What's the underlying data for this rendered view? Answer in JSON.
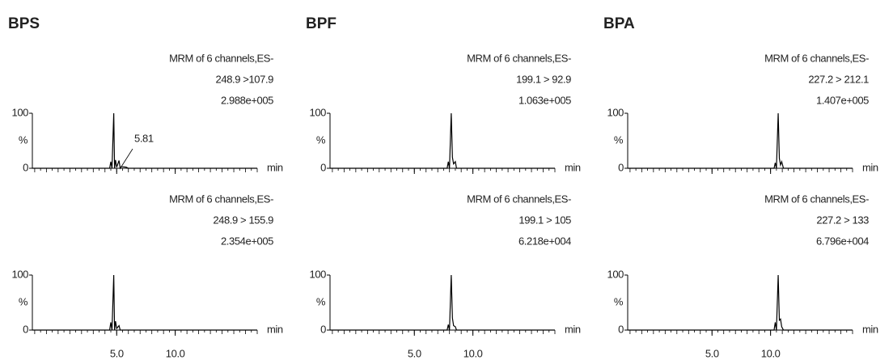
{
  "chart_data": [
    {
      "type": "line",
      "title": "BPS",
      "annotation": [
        "MRM of 6 channels,ES-",
        "248.9 >107.9",
        "2.988e+005"
      ],
      "peak_label": "5.81",
      "y_label": "%",
      "x_label": "min",
      "xlim": [
        -2.2,
        17
      ],
      "ylim": [
        0,
        100
      ],
      "yticks": [
        0,
        100
      ],
      "xticks": [
        5,
        10
      ],
      "show_xtick_labels": false,
      "color": "#000000",
      "x": [
        -2.2,
        4.4,
        4.5,
        4.6,
        4.75,
        4.82,
        4.9,
        5.0,
        5.2,
        5.3,
        5.4,
        5.81,
        6.0,
        17
      ],
      "values": [
        0,
        0,
        12,
        0,
        100,
        0,
        15,
        2,
        14,
        0,
        3,
        2,
        0,
        0
      ]
    },
    {
      "type": "line",
      "title": "BPF",
      "annotation": [
        "MRM of 6 channels,ES-",
        "199.1 > 92.9",
        "1.063e+005"
      ],
      "y_label": "%",
      "x_label": "min",
      "xlim": [
        -2.2,
        17
      ],
      "ylim": [
        0,
        100
      ],
      "yticks": [
        0,
        100
      ],
      "xticks": [
        5,
        10
      ],
      "show_xtick_labels": false,
      "color": "#000000",
      "x": [
        -2.2,
        7.8,
        7.9,
        8.0,
        8.15,
        8.25,
        8.35,
        8.5,
        8.6,
        17
      ],
      "values": [
        0,
        0,
        12,
        0,
        100,
        20,
        8,
        12,
        0,
        0
      ]
    },
    {
      "type": "line",
      "title": "BPA",
      "annotation": [
        "MRM of 6 channels,ES-",
        "227.2 > 212.1",
        "1.407e+005"
      ],
      "y_label": "%",
      "x_label": "min",
      "xlim": [
        -2.2,
        17
      ],
      "ylim": [
        0,
        100
      ],
      "yticks": [
        0,
        100
      ],
      "xticks": [
        5,
        10
      ],
      "show_xtick_labels": false,
      "color": "#000000",
      "x": [
        -2.2,
        10.3,
        10.4,
        10.5,
        10.65,
        10.75,
        10.85,
        10.95,
        11.1,
        17
      ],
      "values": [
        0,
        0,
        10,
        0,
        100,
        18,
        6,
        12,
        0,
        0
      ]
    },
    {
      "type": "line",
      "annotation": [
        "MRM of 6 channels,ES-",
        "248.9 > 155.9",
        "2.354e+005"
      ],
      "y_label": "%",
      "x_label": "min",
      "xlim": [
        -2.2,
        17
      ],
      "ylim": [
        0,
        100
      ],
      "yticks": [
        0,
        100
      ],
      "xticks": [
        {
          "value": 5,
          "label": "5.0"
        },
        {
          "value": 10,
          "label": "10.0"
        }
      ],
      "show_xtick_labels": true,
      "color": "#000000",
      "x": [
        -2.2,
        4.4,
        4.5,
        4.6,
        4.75,
        4.82,
        4.9,
        5.0,
        5.2,
        5.3,
        17
      ],
      "values": [
        0,
        0,
        14,
        0,
        100,
        0,
        16,
        3,
        8,
        0,
        0
      ]
    },
    {
      "type": "line",
      "annotation": [
        "MRM of 6 channels,ES-",
        "199.1 > 105",
        "6.218e+004"
      ],
      "y_label": "%",
      "x_label": "min",
      "xlim": [
        -2.2,
        17
      ],
      "ylim": [
        0,
        100
      ],
      "yticks": [
        0,
        100
      ],
      "xticks": [
        {
          "value": 5,
          "label": "5.0"
        },
        {
          "value": 10,
          "label": "10.0"
        }
      ],
      "show_xtick_labels": true,
      "color": "#000000",
      "x": [
        -2.2,
        7.8,
        7.9,
        8.0,
        8.15,
        8.25,
        8.35,
        8.5,
        8.6,
        17
      ],
      "values": [
        0,
        0,
        10,
        0,
        100,
        22,
        8,
        6,
        0,
        0
      ]
    },
    {
      "type": "line",
      "annotation": [
        "MRM of 6 channels,ES-",
        "227.2 > 133",
        "6.796e+004"
      ],
      "y_label": "%",
      "x_label": "min",
      "xlim": [
        -2.2,
        17
      ],
      "ylim": [
        0,
        100
      ],
      "yticks": [
        0,
        100
      ],
      "xticks": [
        {
          "value": 5,
          "label": "5.0"
        },
        {
          "value": 10,
          "label": "10.0"
        }
      ],
      "show_xtick_labels": true,
      "color": "#000000",
      "x": [
        -2.2,
        10.3,
        10.4,
        10.5,
        10.65,
        10.75,
        10.85,
        10.95,
        11.1,
        17
      ],
      "values": [
        0,
        0,
        14,
        0,
        100,
        18,
        20,
        6,
        0,
        0
      ]
    }
  ]
}
